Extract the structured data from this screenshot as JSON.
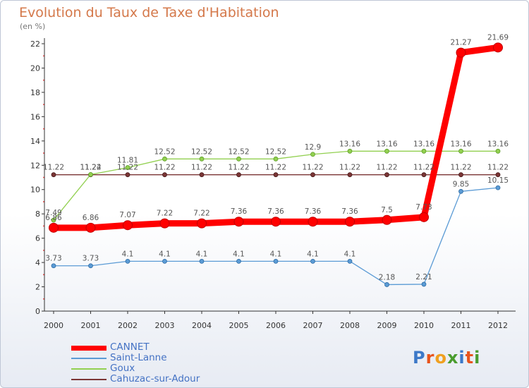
{
  "chart_data": {
    "type": "line",
    "title": "Evolution du Taux de Taxe d'Habitation",
    "subtitle": "(en %)",
    "x": [
      "2000",
      "2001",
      "2002",
      "2003",
      "2004",
      "2005",
      "2006",
      "2007",
      "2008",
      "2009",
      "2010",
      "2011",
      "2012"
    ],
    "ylim": [
      0,
      22
    ],
    "yticks": [
      "0",
      "2",
      "4",
      "6",
      "8",
      "10",
      "12",
      "14",
      "16",
      "18",
      "20",
      "22"
    ],
    "grid": false,
    "legend_position": "bottom-left",
    "series": [
      {
        "name": "CANNET",
        "color": "#ff0000",
        "values": [
          6.86,
          6.86,
          7.07,
          7.22,
          7.22,
          7.36,
          7.36,
          7.36,
          7.36,
          7.5,
          7.73,
          21.27,
          21.69
        ],
        "labels": [
          "6.86",
          "6.86",
          "7.07",
          "7.22",
          "7.22",
          "7.36",
          "7.36",
          "7.36",
          "7.36",
          "7.5",
          "7.73",
          "21.27",
          "21.69"
        ]
      },
      {
        "name": "Saint-Lanne",
        "color": "#5b9bd5",
        "values": [
          3.73,
          3.73,
          4.1,
          4.1,
          4.1,
          4.1,
          4.1,
          4.1,
          4.1,
          2.18,
          2.21,
          9.85,
          10.15
        ],
        "labels": [
          "3.73",
          "3.73",
          "4.1",
          "4.1",
          "4.1",
          "4.1",
          "4.1",
          "4.1",
          "4.1",
          "2.18",
          "2.21",
          "9.85",
          "10.15"
        ]
      },
      {
        "name": "Goux",
        "color": "#92d050",
        "values": [
          7.49,
          11.24,
          11.81,
          12.52,
          12.52,
          12.52,
          12.52,
          12.9,
          13.16,
          13.16,
          13.16,
          13.16,
          13.16
        ],
        "labels": [
          "7.49",
          "11.24",
          "11.81",
          "12.52",
          "12.52",
          "12.52",
          "12.52",
          "12.9",
          "13.16",
          "13.16",
          "13.16",
          "13.16",
          "13.16"
        ]
      },
      {
        "name": "Cahuzac-sur-Adour",
        "color": "#7b3535",
        "values": [
          11.22,
          11.22,
          11.22,
          11.22,
          11.22,
          11.22,
          11.22,
          11.22,
          11.22,
          11.22,
          11.22,
          11.22,
          11.22
        ],
        "labels": [
          "11.22",
          "11.22",
          "11.22",
          "11.22",
          "11.22",
          "11.22",
          "11.22",
          "11.22",
          "11.22",
          "11.22",
          "11.22",
          "11.22",
          "11.22"
        ]
      }
    ]
  },
  "logo": {
    "letters": [
      "P",
      "r",
      "o",
      "x",
      "i",
      "t",
      "i"
    ],
    "colors": [
      "#3c78c8",
      "#e8541c",
      "#f0a020",
      "#4a9c2e",
      "#3c78c8",
      "#e8541c",
      "#4a9c2e"
    ]
  }
}
